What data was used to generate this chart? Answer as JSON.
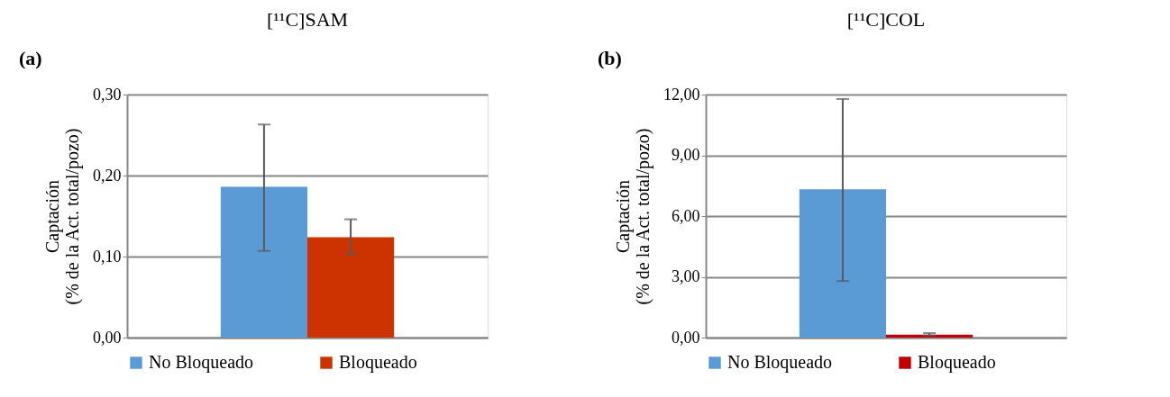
{
  "chart_data": [
    {
      "type": "bar",
      "title": "[¹¹C]SAM",
      "annotations": [
        "(a)"
      ],
      "ylabel": "Captación\n(% de la Act. total/pozo)",
      "categories": [
        null
      ],
      "series": [
        {
          "name": "No Bloqueado",
          "color": "#5b9bd5",
          "values": [
            0.186
          ],
          "errors": [
            [
              0.107,
              0.263
            ]
          ]
        },
        {
          "name": "Bloqueado",
          "color": "#cc3300",
          "values": [
            0.124
          ],
          "errors": [
            [
              0.103,
              0.146
            ]
          ]
        }
      ],
      "ylim": [
        0,
        0.3
      ],
      "yticks": [
        {
          "value": 0,
          "label": "0,00"
        },
        {
          "value": 0.1,
          "label": "0,10"
        },
        {
          "value": 0.2,
          "label": "0,20"
        },
        {
          "value": 0.3,
          "label": "0,30"
        }
      ],
      "grid": "y",
      "legend": "bottom",
      "tick_labels": "y"
    },
    {
      "type": "bar",
      "title": "[¹¹C]COL",
      "annotations": [
        "(b)"
      ],
      "ylabel": "Captación\n(% de la Act. total/pozo)",
      "categories": [
        null
      ],
      "series": [
        {
          "name": "No Bloqueado",
          "color": "#5b9bd5",
          "values": [
            7.32
          ],
          "errors": [
            [
              2.79,
              11.78
            ]
          ]
        },
        {
          "name": "Bloqueado",
          "color": "#c00000",
          "values": [
            0.15
          ],
          "errors": [
            [
              0.1,
              0.22
            ]
          ]
        }
      ],
      "ylim": [
        0,
        12
      ],
      "yticks": [
        {
          "value": 0,
          "label": "0,00"
        },
        {
          "value": 3,
          "label": "3,00"
        },
        {
          "value": 6,
          "label": "6,00"
        },
        {
          "value": 9,
          "label": "9,00"
        },
        {
          "value": 12,
          "label": "12,00"
        }
      ],
      "grid": "y",
      "legend": "bottom",
      "tick_labels": "y"
    }
  ]
}
